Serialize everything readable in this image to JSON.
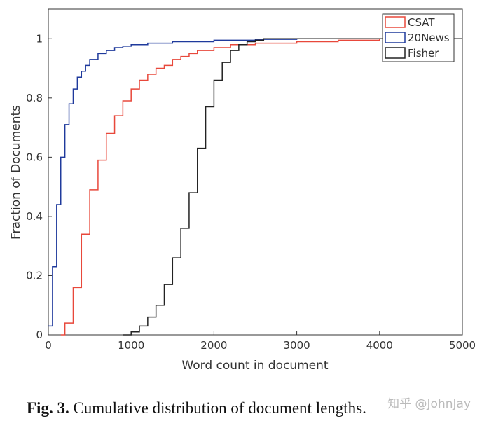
{
  "chart_data": {
    "type": "step",
    "xlabel": "Word count in document",
    "ylabel": "Fraction of Documents",
    "xlim": [
      0,
      5000
    ],
    "xticks": [
      0,
      1000,
      2000,
      3000,
      4000,
      5000
    ],
    "ylim": [
      0,
      1.1
    ],
    "yticks": [
      0,
      0.2,
      0.4,
      0.6,
      0.8,
      1
    ],
    "legend": "upper-right",
    "series": [
      {
        "name": "CSAT",
        "color": "#e8483b",
        "x": [
          150,
          200,
          300,
          400,
          500,
          600,
          700,
          800,
          900,
          1000,
          1100,
          1200,
          1300,
          1400,
          1500,
          1600,
          1700,
          1800,
          2000,
          2200,
          2500,
          3000,
          3500,
          4000,
          5000
        ],
        "values": [
          0,
          0.04,
          0.16,
          0.34,
          0.49,
          0.59,
          0.68,
          0.74,
          0.79,
          0.83,
          0.86,
          0.88,
          0.9,
          0.91,
          0.93,
          0.94,
          0.95,
          0.96,
          0.97,
          0.98,
          0.985,
          0.99,
          0.995,
          1,
          1
        ]
      },
      {
        "name": "20News",
        "color": "#1f3a9c",
        "x": [
          0,
          50,
          100,
          150,
          200,
          250,
          300,
          350,
          400,
          450,
          500,
          600,
          700,
          800,
          900,
          1000,
          1200,
          1500,
          2000,
          2500,
          3000,
          5000
        ],
        "values": [
          0.03,
          0.23,
          0.44,
          0.6,
          0.71,
          0.78,
          0.83,
          0.87,
          0.89,
          0.91,
          0.93,
          0.95,
          0.96,
          0.97,
          0.975,
          0.98,
          0.985,
          0.99,
          0.995,
          0.998,
          1,
          1
        ]
      },
      {
        "name": "Fisher",
        "color": "#222222",
        "x": [
          900,
          1000,
          1100,
          1200,
          1300,
          1400,
          1500,
          1600,
          1700,
          1800,
          1900,
          2000,
          2100,
          2200,
          2300,
          2400,
          2500,
          2600,
          2800,
          5000
        ],
        "values": [
          0,
          0.01,
          0.03,
          0.06,
          0.1,
          0.17,
          0.26,
          0.36,
          0.48,
          0.63,
          0.77,
          0.86,
          0.92,
          0.96,
          0.98,
          0.99,
          0.995,
          1,
          1,
          1
        ]
      }
    ],
    "caption_label": "Fig. 3.",
    "caption_text": "Cumulative distribution of document lengths.",
    "watermark": "知乎 @JohnJay"
  }
}
